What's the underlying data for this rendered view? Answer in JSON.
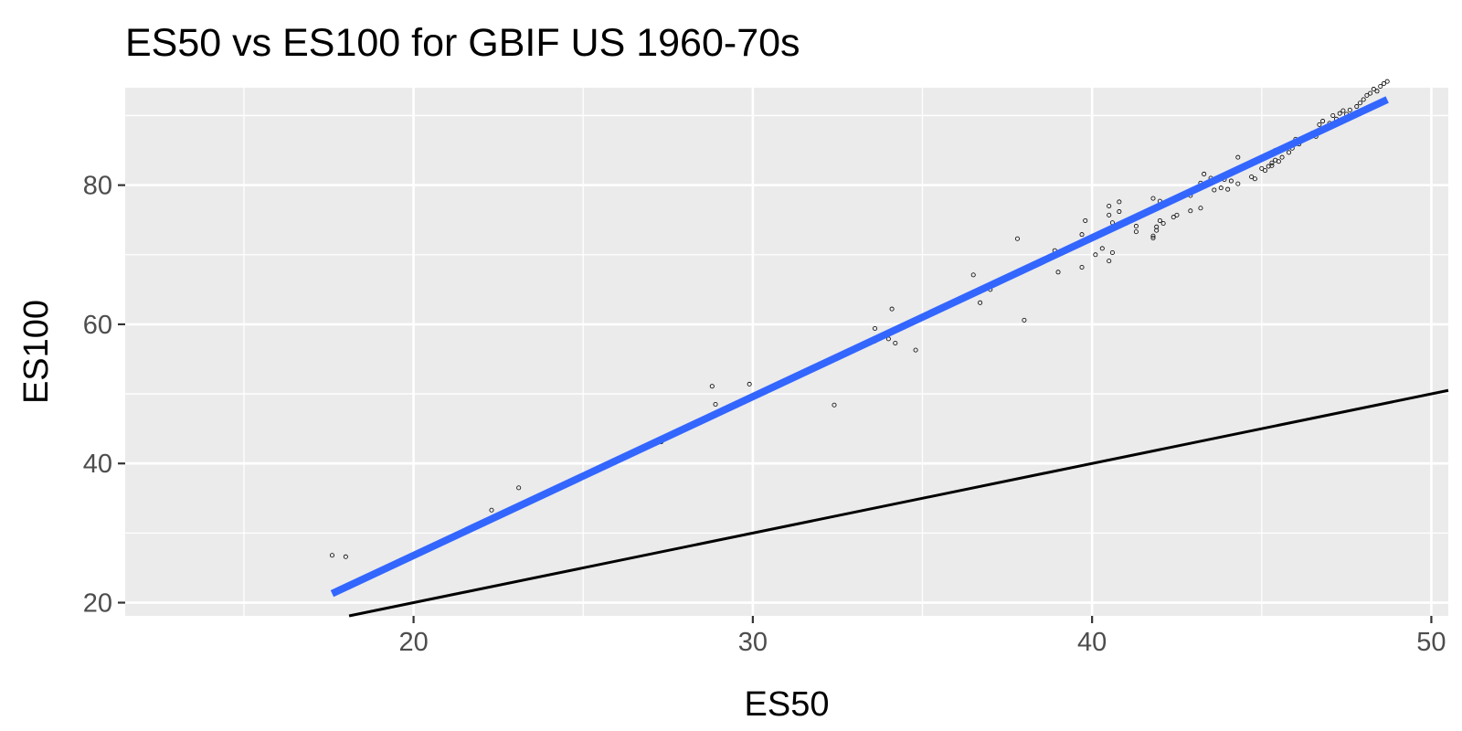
{
  "chart_data": {
    "type": "scatter",
    "title": "ES50 vs ES100 for GBIF US 1960-70s",
    "xlabel": "ES50",
    "ylabel": "ES100",
    "xlim": [
      11.5,
      50.5
    ],
    "ylim": [
      18.1,
      94.0
    ],
    "x_ticks": [
      20,
      30,
      40,
      50
    ],
    "x_minor": [
      15,
      25,
      35,
      45
    ],
    "y_ticks": [
      20,
      40,
      60,
      80
    ],
    "y_minor": [
      30,
      50,
      70,
      90
    ],
    "grid": true,
    "colors": {
      "panel": "#ebebeb",
      "grid": "#ffffff",
      "fit_line": "#3366ff",
      "reference_line": "#000000",
      "points": "#000000"
    },
    "fit_line": {
      "x": [
        17.6,
        48.7
      ],
      "y": [
        21.3,
        92.3
      ]
    },
    "reference_line": {
      "slope": 1,
      "intercept": 0
    },
    "points": [
      [
        17.6,
        26.8
      ],
      [
        18.0,
        26.6
      ],
      [
        22.3,
        33.3
      ],
      [
        23.1,
        36.5
      ],
      [
        27.3,
        43.1
      ],
      [
        28.8,
        51.1
      ],
      [
        28.9,
        48.5
      ],
      [
        29.9,
        51.4
      ],
      [
        32.4,
        48.4
      ],
      [
        33.6,
        59.4
      ],
      [
        33.6,
        57.6
      ],
      [
        34.0,
        57.9
      ],
      [
        34.1,
        62.2
      ],
      [
        34.2,
        57.3
      ],
      [
        34.8,
        56.3
      ],
      [
        36.5,
        67.1
      ],
      [
        36.7,
        63.1
      ],
      [
        37.0,
        65.0
      ],
      [
        37.8,
        72.3
      ],
      [
        38.0,
        60.6
      ],
      [
        38.1,
        68.0
      ],
      [
        38.9,
        70.6
      ],
      [
        39.0,
        70.0
      ],
      [
        39.0,
        67.5
      ],
      [
        39.7,
        72.9
      ],
      [
        39.7,
        68.2
      ],
      [
        39.8,
        74.9
      ],
      [
        40.1,
        70.0
      ],
      [
        40.3,
        70.9
      ],
      [
        40.5,
        69.1
      ],
      [
        40.5,
        73.5
      ],
      [
        40.5,
        75.7
      ],
      [
        40.5,
        77.0
      ],
      [
        40.6,
        70.3
      ],
      [
        40.6,
        74.6
      ],
      [
        40.8,
        76.2
      ],
      [
        40.8,
        77.6
      ],
      [
        41.0,
        74.5
      ],
      [
        41.2,
        75.0
      ],
      [
        41.3,
        74.1
      ],
      [
        41.3,
        73.3
      ],
      [
        41.8,
        72.4
      ],
      [
        41.8,
        72.7
      ],
      [
        41.8,
        78.1
      ],
      [
        41.9,
        73.5
      ],
      [
        41.9,
        74.0
      ],
      [
        42.0,
        77.7
      ],
      [
        42.0,
        74.9
      ],
      [
        42.1,
        74.5
      ],
      [
        42.4,
        75.4
      ],
      [
        42.5,
        75.7
      ],
      [
        42.9,
        76.3
      ],
      [
        42.9,
        78.5
      ],
      [
        43.2,
        80.3
      ],
      [
        43.2,
        76.7
      ],
      [
        43.3,
        81.6
      ],
      [
        43.5,
        81.0
      ],
      [
        43.6,
        79.3
      ],
      [
        43.8,
        79.6
      ],
      [
        43.9,
        80.8
      ],
      [
        44.0,
        79.4
      ],
      [
        44.1,
        80.6
      ],
      [
        44.3,
        80.2
      ],
      [
        44.3,
        84.0
      ],
      [
        44.7,
        81.2
      ],
      [
        44.8,
        80.9
      ],
      [
        45.0,
        82.4
      ],
      [
        45.1,
        82.1
      ],
      [
        45.2,
        82.7
      ],
      [
        45.3,
        83.2
      ],
      [
        45.3,
        82.8
      ],
      [
        45.4,
        83.6
      ],
      [
        45.4,
        85.0
      ],
      [
        45.5,
        83.4
      ],
      [
        45.6,
        84.0
      ],
      [
        45.8,
        84.7
      ],
      [
        45.8,
        85.8
      ],
      [
        45.9,
        85.3
      ],
      [
        46.0,
        86.6
      ],
      [
        46.1,
        85.9
      ],
      [
        46.2,
        86.5
      ],
      [
        46.3,
        87.0
      ],
      [
        46.5,
        87.5
      ],
      [
        46.6,
        87.0
      ],
      [
        46.7,
        88.7
      ],
      [
        46.8,
        89.2
      ],
      [
        46.9,
        88.4
      ],
      [
        47.0,
        88.9
      ],
      [
        47.1,
        90.0
      ],
      [
        47.2,
        89.5
      ],
      [
        47.3,
        90.3
      ],
      [
        47.4,
        90.7
      ],
      [
        47.5,
        90.2
      ],
      [
        47.6,
        90.8
      ],
      [
        47.8,
        91.3
      ],
      [
        47.9,
        91.8
      ],
      [
        48.0,
        92.3
      ],
      [
        48.1,
        92.9
      ],
      [
        48.2,
        93.2
      ],
      [
        48.3,
        93.8
      ],
      [
        48.4,
        93.5
      ],
      [
        48.5,
        94.2
      ],
      [
        48.6,
        94.6
      ],
      [
        48.7,
        94.9
      ]
    ]
  }
}
